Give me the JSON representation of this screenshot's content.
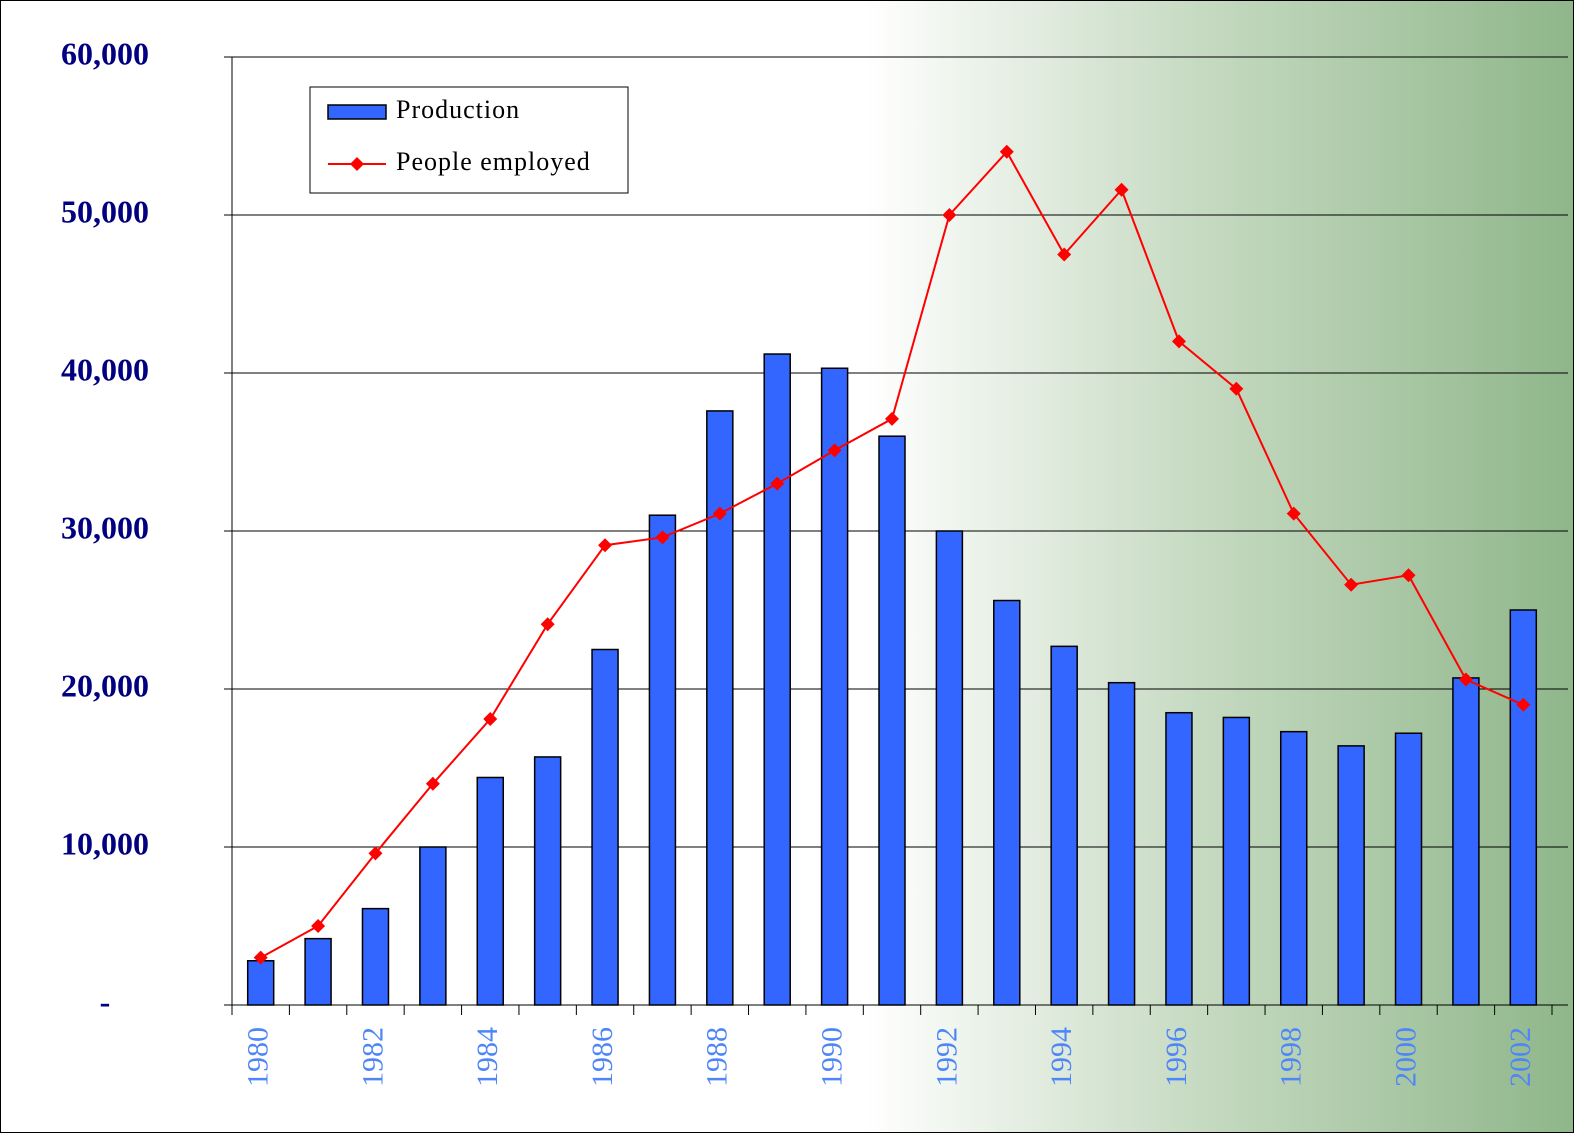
{
  "chart_data": {
    "type": "bar_line",
    "categories": [
      "1980",
      null,
      "1982",
      null,
      "1984",
      null,
      "1986",
      null,
      "1988",
      null,
      "1990",
      null,
      "1992",
      null,
      "1994",
      null,
      "1996",
      null,
      "1998",
      null,
      "2000",
      null,
      "2002"
    ],
    "series": [
      {
        "name": "Production",
        "type": "bar",
        "color": "#3366ff",
        "values": [
          2800,
          4200,
          6100,
          10000,
          14400,
          15700,
          22500,
          31000,
          37600,
          41200,
          40300,
          36000,
          30000,
          25600,
          22700,
          20400,
          18500,
          18200,
          17300,
          16400,
          17200,
          20700,
          25000
        ]
      },
      {
        "name": "People employed",
        "type": "line",
        "color": "#ff0000",
        "values": [
          3000,
          5000,
          9600,
          14000,
          18100,
          24100,
          29100,
          29600,
          31100,
          33000,
          35100,
          37100,
          50000,
          54000,
          47500,
          51600,
          42000,
          39000,
          31100,
          26600,
          27200,
          20600,
          19000
        ]
      }
    ],
    "ylim": [
      0,
      60000
    ],
    "yticks": [
      {
        "value": 0,
        "label": "-"
      },
      {
        "value": 10000,
        "label": "10,000"
      },
      {
        "value": 20000,
        "label": "20,000"
      },
      {
        "value": 30000,
        "label": "30,000"
      },
      {
        "value": 40000,
        "label": "40,000"
      },
      {
        "value": 50000,
        "label": "50,000"
      },
      {
        "value": 60000,
        "label": "60,000"
      }
    ],
    "grid": true,
    "legend": "upper left"
  }
}
